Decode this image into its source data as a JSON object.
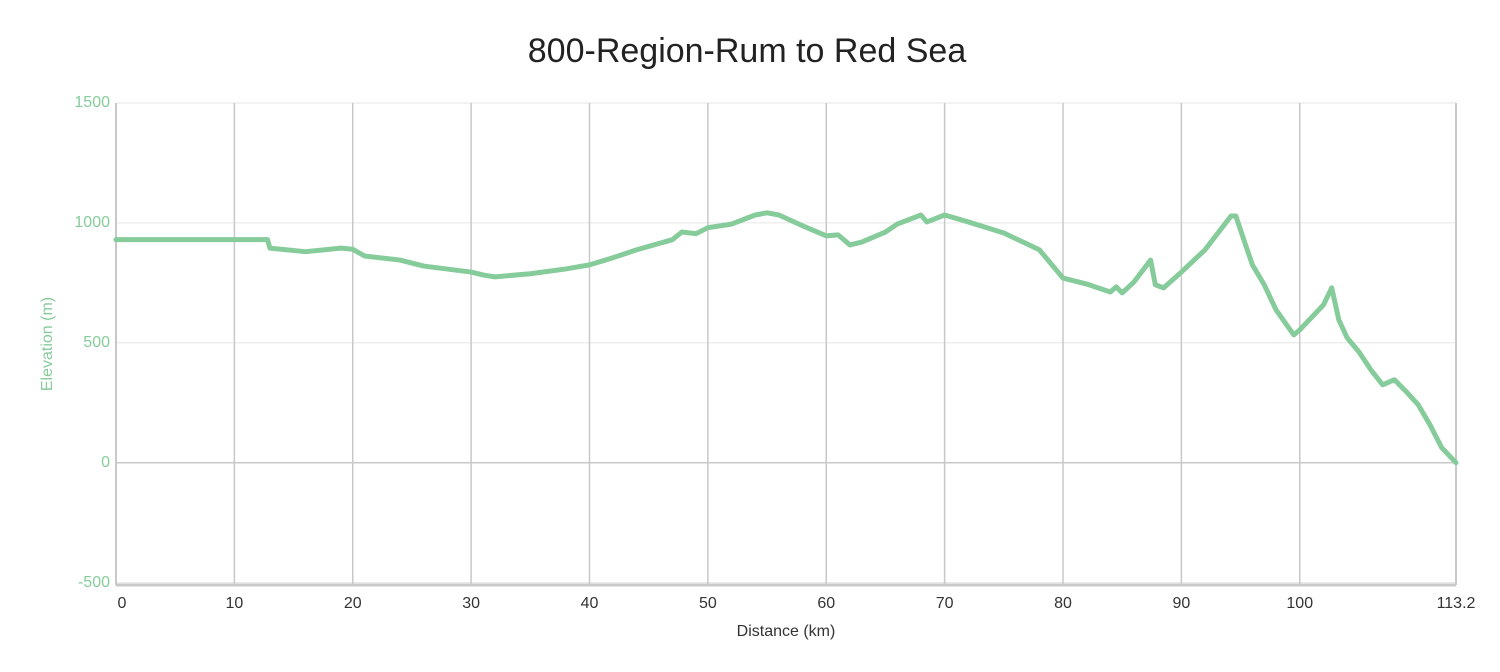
{
  "chart_data": {
    "type": "line",
    "title": "800-Region-Rum to Red Sea",
    "x_label": "Distance (km)",
    "y_label": "Elevation (m)",
    "xlim": [
      0,
      113.2
    ],
    "ylim": [
      -510,
      1500
    ],
    "xticks": [
      0,
      10,
      20,
      30,
      40,
      50,
      60,
      70,
      80,
      90,
      100,
      113.2
    ],
    "yticks": [
      -500,
      0,
      500,
      1000,
      1500
    ],
    "grid": true,
    "series": [
      {
        "name": "Elevation",
        "color": "#86cc9b",
        "x": [
          0,
          12.8,
          13,
          16,
          19,
          20,
          21,
          24,
          26,
          30,
          31,
          32,
          35,
          38,
          40,
          42,
          44,
          47,
          47.8,
          49,
          50,
          52,
          54,
          55,
          56,
          58,
          60,
          61,
          62,
          63,
          65,
          66,
          68,
          68.5,
          70,
          72,
          75,
          78,
          80,
          82,
          84,
          84.5,
          85,
          86,
          87.4,
          87.8,
          88.5,
          90,
          92,
          94.2,
          94.6,
          95,
          96,
          97,
          98,
          99.5,
          100,
          102,
          102.7,
          103.3,
          104,
          105,
          106,
          107,
          108,
          109,
          110,
          111,
          112,
          113.2
        ],
        "values": [
          930,
          930,
          895,
          880,
          895,
          890,
          862,
          845,
          820,
          795,
          783,
          775,
          788,
          808,
          825,
          855,
          888,
          930,
          962,
          955,
          980,
          995,
          1033,
          1042,
          1033,
          988,
          946,
          950,
          908,
          920,
          962,
          995,
          1033,
          1004,
          1033,
          1004,
          958,
          888,
          770,
          745,
          712,
          733,
          708,
          754,
          845,
          742,
          729,
          795,
          888,
          1029,
          1029,
          970,
          825,
          742,
          637,
          533,
          554,
          658,
          729,
          596,
          521,
          462,
          388,
          325,
          346,
          296,
          242,
          158,
          62,
          0
        ]
      }
    ]
  }
}
